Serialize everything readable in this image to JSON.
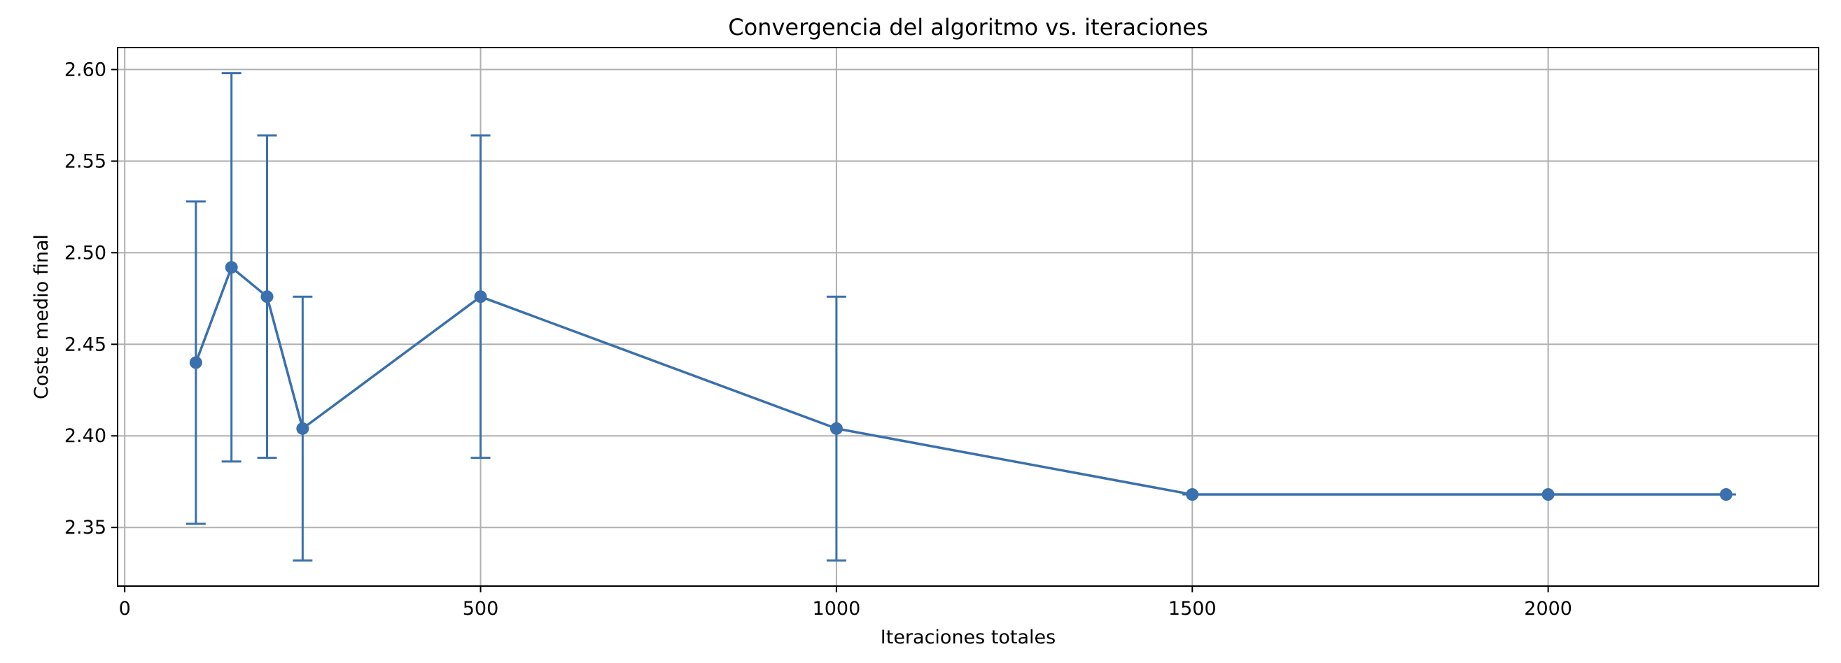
{
  "chart_data": {
    "type": "line",
    "title": "Convergencia del algoritmo vs. iteraciones",
    "xlabel": "Iteraciones totales",
    "ylabel": "Coste medio final",
    "xlim": [
      -10,
      2380
    ],
    "ylim": [
      2.318,
      2.612
    ],
    "grid": true,
    "xticks": [
      0,
      500,
      1000,
      1500,
      2000
    ],
    "xtick_labels": [
      "0",
      "500",
      "1000",
      "1500",
      "2000"
    ],
    "yticks": [
      2.35,
      2.4,
      2.45,
      2.5,
      2.55,
      2.6
    ],
    "ytick_labels": [
      "2.35",
      "2.40",
      "2.45",
      "2.50",
      "2.55",
      "2.60"
    ],
    "series": [
      {
        "color": "#3a70ad",
        "x": [
          100,
          150,
          200,
          250,
          500,
          1000,
          1500,
          2000,
          2250
        ],
        "y": [
          2.44,
          2.492,
          2.476,
          2.404,
          2.476,
          2.404,
          2.368,
          2.368,
          2.368
        ],
        "yerr": [
          0.088,
          0.106,
          0.088,
          0.072,
          0.088,
          0.072,
          0.0,
          0.0,
          0.0
        ]
      }
    ]
  }
}
